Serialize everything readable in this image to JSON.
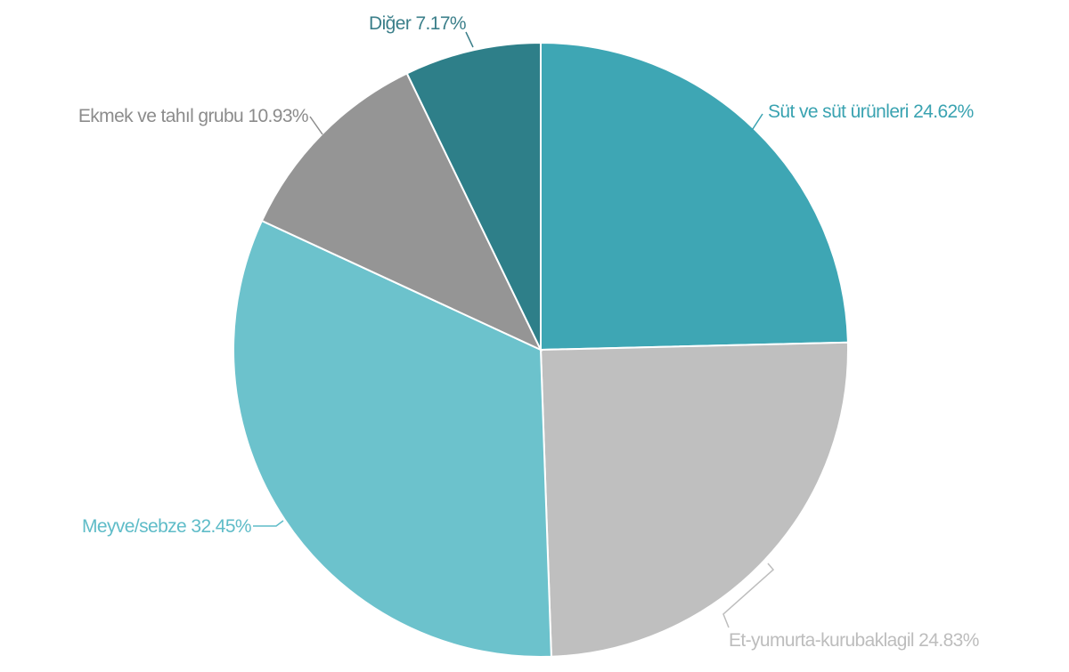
{
  "chart_data": {
    "type": "pie",
    "start_angle": "12 o'clock",
    "direction": "clockwise",
    "slices": [
      {
        "label": "Süt ve süt ürünleri",
        "value": 24.62,
        "display": "Süt ve süt ürünleri 24.62%",
        "color": "#3ea6b4",
        "label_color": "#3aa3b1"
      },
      {
        "label": "Et-yumurta-kurubaklagil",
        "value": 24.83,
        "display": "Et-yumurta-kurubaklagil 24.83%",
        "color": "#bfbfbf",
        "label_color": "#bdbdbd"
      },
      {
        "label": "Meyve/sebze",
        "value": 32.45,
        "display": "Meyve/sebze 32.45%",
        "color": "#6cc2cc",
        "label_color": "#5fbcc8"
      },
      {
        "label": "Ekmek ve tahıl grubu",
        "value": 10.93,
        "display": "Ekmek ve tahıl grubu 10.93%",
        "color": "#959595",
        "label_color": "#8c8c8c"
      },
      {
        "label": "Diğer",
        "value": 7.17,
        "display": "Diğer 7.17%",
        "color": "#2e7f89",
        "label_color": "#3b7f8a"
      }
    ]
  }
}
